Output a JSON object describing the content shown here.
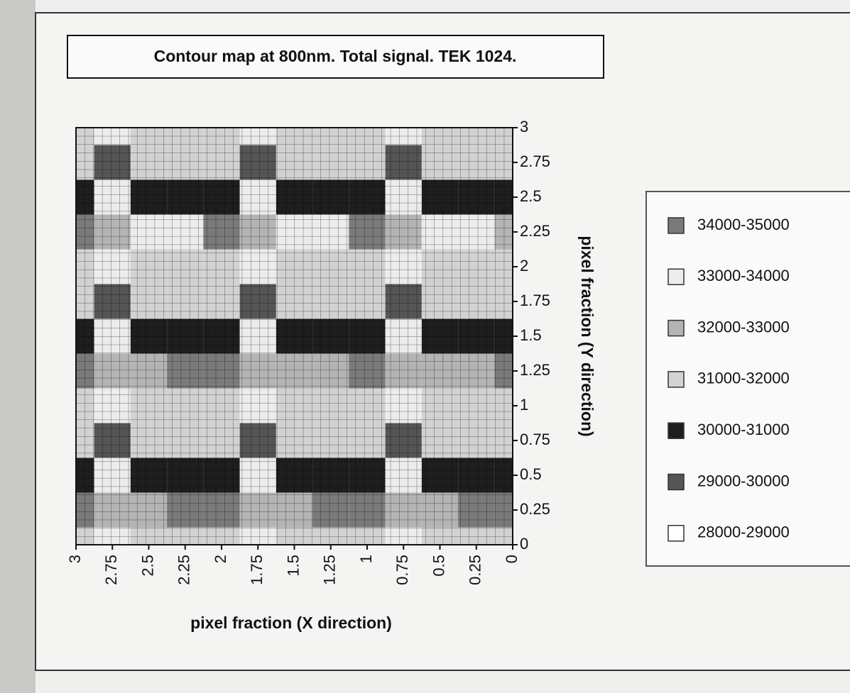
{
  "chart_data": {
    "type": "contour",
    "title": "Contour map at 800nm. Total signal. TEK 1024.",
    "xlabel": "pixel fraction (X direction)",
    "ylabel": "pixel fraction (Y direction)",
    "x": [
      3,
      2.75,
      2.5,
      2.25,
      2,
      1.75,
      1.5,
      1.25,
      1,
      0.75,
      0.5,
      0.25,
      0
    ],
    "y": [
      0,
      0.25,
      0.5,
      0.75,
      1,
      1.25,
      1.5,
      1.75,
      2,
      2.25,
      2.5,
      2.75,
      3
    ],
    "z": [
      [
        31500,
        33500,
        31500,
        31500,
        31500,
        33500,
        31500,
        31500,
        31500,
        33500,
        31500,
        31500,
        31500
      ],
      [
        34500,
        32500,
        32500,
        34500,
        34500,
        32500,
        32500,
        34500,
        34500,
        32500,
        32500,
        34500,
        34500
      ],
      [
        30500,
        33500,
        30500,
        30500,
        30500,
        33500,
        30500,
        30500,
        30500,
        33500,
        30500,
        30500,
        30500
      ],
      [
        31500,
        29500,
        31500,
        31500,
        31500,
        29500,
        31500,
        31500,
        31500,
        29500,
        31500,
        31500,
        31500
      ],
      [
        31500,
        33500,
        31500,
        31500,
        31500,
        33500,
        31500,
        31500,
        31500,
        33500,
        31500,
        31500,
        31500
      ],
      [
        34500,
        32500,
        32500,
        34500,
        34500,
        32500,
        32500,
        32500,
        34500,
        32500,
        32500,
        32500,
        34500
      ],
      [
        30500,
        33500,
        30500,
        30500,
        30500,
        33500,
        30500,
        30500,
        30500,
        33500,
        30500,
        30500,
        30500
      ],
      [
        31500,
        29500,
        31500,
        31500,
        31500,
        29500,
        31500,
        31500,
        31500,
        29500,
        31500,
        31500,
        31500
      ],
      [
        31500,
        33500,
        31500,
        31500,
        31500,
        33500,
        31500,
        31500,
        31500,
        33500,
        31500,
        31500,
        31500
      ],
      [
        34500,
        32500,
        33500,
        33500,
        34500,
        32500,
        33500,
        33500,
        34500,
        32500,
        33500,
        33500,
        32500
      ],
      [
        30500,
        33500,
        30500,
        30500,
        30500,
        33500,
        30500,
        30500,
        30500,
        33500,
        30500,
        30500,
        30500
      ],
      [
        31500,
        29500,
        31500,
        31500,
        31500,
        29500,
        31500,
        31500,
        31500,
        29500,
        31500,
        31500,
        31500
      ],
      [
        31500,
        33500,
        31500,
        31500,
        31500,
        33500,
        31500,
        31500,
        31500,
        33500,
        31500,
        31500,
        31500
      ]
    ],
    "xlim": [
      3,
      0
    ],
    "ylim": [
      0,
      3
    ],
    "xticks": [
      3,
      2.75,
      2.5,
      2.25,
      2,
      1.75,
      1.5,
      1.25,
      1,
      0.75,
      0.5,
      0.25,
      0
    ],
    "yticks": [
      0,
      0.25,
      0.5,
      0.75,
      1,
      1.25,
      1.5,
      1.75,
      2,
      2.25,
      2.5,
      2.75,
      3
    ],
    "levels": [
      {
        "name": "34000-35000",
        "range": [
          34000,
          35000
        ],
        "color": "#7a7a7a"
      },
      {
        "name": "33000-34000",
        "range": [
          33000,
          34000
        ],
        "color": "#ececec"
      },
      {
        "name": "32000-33000",
        "range": [
          32000,
          33000
        ],
        "color": "#b4b4b4"
      },
      {
        "name": "31000-32000",
        "range": [
          31000,
          32000
        ],
        "color": "#d2d2d2"
      },
      {
        "name": "30000-31000",
        "range": [
          30000,
          31000
        ],
        "color": "#1e1e1e"
      },
      {
        "name": "29000-30000",
        "range": [
          29000,
          30000
        ],
        "color": "#555555"
      },
      {
        "name": "28000-29000",
        "range": [
          28000,
          29000
        ],
        "color": "#ffffff"
      }
    ]
  }
}
